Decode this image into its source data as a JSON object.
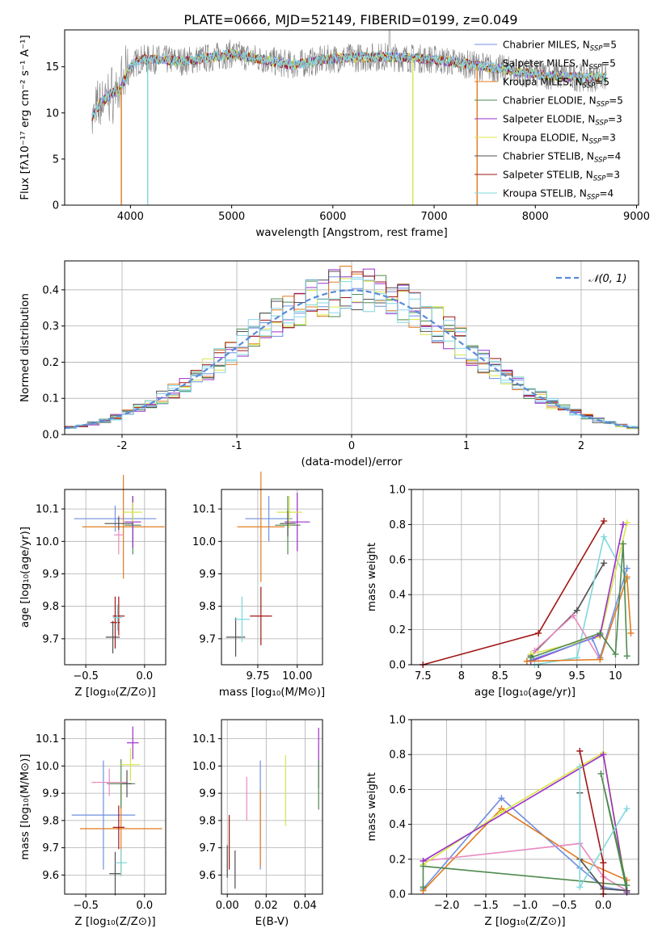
{
  "figure_title": "PLATE=0666, MJD=52149, FIBERID=0199, z=0.049",
  "colors": {
    "chabrier_miles": "#6f8fdf",
    "salpeter_miles": "#8fd3f0",
    "kroupa_miles": "#e07b1f",
    "chabrier_elodie": "#4f8a4f",
    "salpeter_elodie": "#9b30c8",
    "kroupa_elodie": "#d8e64a",
    "chabrier_stelib": "#505050",
    "salpeter_stelib": "#a01515",
    "kroupa_stelib": "#7fd8dc",
    "pink": "#e88ac0",
    "gray": "#7f7f7f",
    "normal_curve": "#5b8bd8",
    "grid": "#b0b0b0"
  },
  "chart_data": [
    {
      "id": "spectrum",
      "type": "line",
      "title": "PLATE=0666, MJD=52149, FIBERID=0199, z=0.049",
      "xlabel": "wavelength [Angstrom, rest frame]",
      "ylabel": "Flux [fλ10⁻¹⁷ erg cm⁻² s⁻¹ A⁻¹]",
      "xlim": [
        3350,
        9020
      ],
      "ylim": [
        0,
        19
      ],
      "xticks": [
        4000,
        5000,
        6000,
        7000,
        8000,
        9000
      ],
      "yticks": [
        0,
        5,
        10,
        15
      ],
      "grid": false,
      "legend_position": "right",
      "legend": [
        {
          "label": "Chabrier MILES, N",
          "sub": "SSP",
          "eq": "=5",
          "color": "#6f8fdf"
        },
        {
          "label": "Salpeter MILES, N",
          "sub": "SSP",
          "eq": "=5",
          "color": "#8fd3f0"
        },
        {
          "label": "Kroupa MILES, N",
          "sub": "SSP",
          "eq": "=5",
          "color": "#e07b1f"
        },
        {
          "label": "Chabrier ELODIE, N",
          "sub": "SSP",
          "eq": "=5",
          "color": "#4f8a4f"
        },
        {
          "label": "Salpeter ELODIE, N",
          "sub": "SSP",
          "eq": "=3",
          "color": "#9b30c8"
        },
        {
          "label": "Kroupa ELODIE, N",
          "sub": "SSP",
          "eq": "=3",
          "color": "#d8e64a"
        },
        {
          "label": "Chabrier STELIB, N",
          "sub": "SSP",
          "eq": "=4",
          "color": "#505050"
        },
        {
          "label": "Salpeter STELIB, N",
          "sub": "SSP",
          "eq": "=3",
          "color": "#a01515"
        },
        {
          "label": "Kroupa STELIB, N",
          "sub": "SSP",
          "eq": "=4",
          "color": "#7fd8dc"
        }
      ],
      "continuum": {
        "x": [
          3620,
          3700,
          3800,
          3900,
          4000,
          4100,
          4300,
          4500,
          4800,
          5000,
          5300,
          5600,
          6000,
          6500,
          7000,
          7500,
          8000,
          8500,
          8700
        ],
        "y": [
          9.5,
          11.0,
          12.0,
          12.5,
          15.0,
          15.8,
          15.8,
          15.6,
          16.0,
          16.4,
          15.8,
          15.2,
          15.9,
          16.1,
          15.8,
          15.0,
          14.2,
          13.8,
          13.9
        ]
      },
      "dips": [
        {
          "x": 3910,
          "y": 0
        },
        {
          "x": 4170,
          "y": 0
        },
        {
          "x": 6790,
          "y": 0
        },
        {
          "x": 7425,
          "y": 0
        }
      ]
    },
    {
      "id": "residual_hist",
      "type": "histogram",
      "xlabel": "(data-model)/error",
      "ylabel": "Normed distribution",
      "xlim": [
        -2.5,
        2.5
      ],
      "ylim": [
        0,
        0.48
      ],
      "xticks": [
        -2,
        -1,
        0,
        1,
        2
      ],
      "yticks": [
        0.0,
        0.1,
        0.2,
        0.3,
        0.4
      ],
      "grid": true,
      "legend_position": "top-right",
      "legend": [
        {
          "label": "𝒩(0, 1)",
          "color": "#5b8bd8"
        }
      ],
      "bin_width": 0.1
    },
    {
      "id": "age_vs_Z",
      "type": "errorbar",
      "xlabel": "Z [log₁₀(Z/Z⊙)]",
      "ylabel": "age  [log₁₀(age/yr)]",
      "xlim": [
        -0.68,
        0.18
      ],
      "ylim": [
        9.62,
        10.16
      ],
      "xticks": [
        -0.5,
        0.0
      ],
      "xticklabels": [
        "−0.5",
        "0.0"
      ],
      "yticks": [
        9.7,
        9.8,
        9.9,
        10.0,
        10.1
      ],
      "points": [
        {
          "x": -0.25,
          "xerr": 0.35,
          "y": 10.07,
          "yerr": 0.04,
          "color": "#6f8fdf"
        },
        {
          "x": -0.18,
          "xerr": 0.35,
          "y": 10.045,
          "yerr": 0.16,
          "color": "#e07b1f"
        },
        {
          "x": -0.1,
          "xerr": 0.07,
          "y": 10.05,
          "yerr": 0.09,
          "color": "#4f8a4f"
        },
        {
          "x": -0.1,
          "xerr": 0.07,
          "y": 10.06,
          "yerr": 0.08,
          "color": "#9b30c8"
        },
        {
          "x": -0.1,
          "xerr": 0.08,
          "y": 10.09,
          "yerr": 0.03,
          "color": "#d8e64a"
        },
        {
          "x": -0.22,
          "xerr": 0.04,
          "y": 10.02,
          "yerr": 0.06,
          "color": "#e88ac0"
        },
        {
          "x": -0.22,
          "xerr": 0.12,
          "y": 10.055,
          "yerr": 0.02,
          "color": "#505050"
        },
        {
          "x": -0.27,
          "xerr": 0.06,
          "y": 9.705,
          "yerr": 0.05,
          "color": "#505050"
        },
        {
          "x": -0.25,
          "xerr": 0.04,
          "y": 9.75,
          "yerr": 0.08,
          "color": "#a01515"
        },
        {
          "x": -0.22,
          "xerr": 0.05,
          "y": 9.77,
          "yerr": 0.06,
          "color": "#a01515"
        },
        {
          "x": -0.23,
          "xerr": 0.04,
          "y": 9.765,
          "yerr": 0.04,
          "color": "#7fd8dc"
        }
      ]
    },
    {
      "id": "age_vs_mass",
      "type": "errorbar",
      "xlabel": "mass [log₁₀(M/M⊙)]",
      "ylabel": "",
      "xlim": [
        9.52,
        10.16
      ],
      "ylim": [
        9.62,
        10.16
      ],
      "xticks": [
        9.75,
        10.0
      ],
      "xticklabels": [
        "9.75",
        "10.00"
      ],
      "yticks": [
        9.7,
        9.8,
        9.9,
        10.0,
        10.1
      ],
      "points": [
        {
          "x": 9.82,
          "xerr": 0.15,
          "y": 10.07,
          "yerr": 0.07,
          "color": "#6f8fdf"
        },
        {
          "x": 9.77,
          "xerr": 0.15,
          "y": 10.045,
          "yerr": 0.17,
          "color": "#e07b1f"
        },
        {
          "x": 9.94,
          "xerr": 0.08,
          "y": 10.05,
          "yerr": 0.09,
          "color": "#4f8a4f"
        },
        {
          "x": 10.0,
          "xerr": 0.08,
          "y": 10.06,
          "yerr": 0.09,
          "color": "#9b30c8"
        },
        {
          "x": 9.95,
          "xerr": 0.08,
          "y": 10.09,
          "yerr": 0.05,
          "color": "#d8e64a"
        },
        {
          "x": 9.94,
          "xerr": 0.05,
          "y": 10.055,
          "yerr": 0.04,
          "color": "#505050"
        },
        {
          "x": 9.61,
          "xerr": 0.06,
          "y": 9.705,
          "yerr": 0.06,
          "color": "#505050"
        },
        {
          "x": 9.77,
          "xerr": 0.07,
          "y": 9.77,
          "yerr": 0.09,
          "color": "#a01515"
        },
        {
          "x": 9.65,
          "xerr": 0.05,
          "y": 9.76,
          "yerr": 0.07,
          "color": "#7fd8dc"
        }
      ]
    },
    {
      "id": "weight_vs_age",
      "type": "line",
      "xlabel": "age  [log₁₀(age/yr)]",
      "ylabel": "mass weight",
      "xlim": [
        7.35,
        10.3
      ],
      "ylim": [
        0,
        1.0
      ],
      "xticks": [
        7.5,
        8.0,
        8.5,
        9.0,
        9.5,
        10.0
      ],
      "yticks": [
        0.0,
        0.2,
        0.4,
        0.6,
        0.8,
        1.0
      ],
      "grid": true,
      "series": [
        {
          "color": "#a01515",
          "x": [
            7.5,
            9.0,
            9.85
          ],
          "y": [
            0.0,
            0.18,
            0.82
          ]
        },
        {
          "color": "#505050",
          "x": [
            8.9,
            9.5,
            9.85
          ],
          "y": [
            0.05,
            0.31,
            0.58
          ]
        },
        {
          "color": "#7fd8dc",
          "x": [
            8.95,
            9.5,
            9.85,
            10.15
          ],
          "y": [
            0.0,
            0.04,
            0.73,
            0.49
          ]
        },
        {
          "color": "#d8e64a",
          "x": [
            8.9,
            9.8,
            10.15
          ],
          "y": [
            0.06,
            0.16,
            0.81
          ]
        },
        {
          "color": "#9b30c8",
          "x": [
            8.9,
            9.8,
            10.1
          ],
          "y": [
            0.02,
            0.17,
            0.8
          ]
        },
        {
          "color": "#e88ac0",
          "x": [
            8.95,
            9.45,
            9.8
          ],
          "y": [
            0.08,
            0.28,
            0.03
          ]
        },
        {
          "color": "#6f8fdf",
          "x": [
            8.85,
            9.7,
            9.8,
            10.15
          ],
          "y": [
            0.02,
            0.15,
            0.04,
            0.55
          ]
        },
        {
          "color": "#e07b1f",
          "x": [
            8.85,
            9.8,
            10.15,
            10.2
          ],
          "y": [
            0.02,
            0.03,
            0.5,
            0.18
          ]
        },
        {
          "color": "#4f8a4f",
          "x": [
            8.9,
            9.8,
            10.0,
            10.1,
            10.15
          ],
          "y": [
            0.04,
            0.18,
            0.06,
            0.69,
            0.05
          ]
        }
      ]
    },
    {
      "id": "mass_vs_Z",
      "type": "errorbar",
      "xlabel": "Z [log₁₀(Z/Z⊙)]",
      "ylabel": "mass [log₁₀(M/M⊙)]",
      "xlim": [
        -0.68,
        0.18
      ],
      "ylim": [
        9.53,
        10.17
      ],
      "xticks": [
        -0.5,
        0.0
      ],
      "xticklabels": [
        "−0.5",
        "0.0"
      ],
      "yticks": [
        9.6,
        9.7,
        9.8,
        9.9,
        10.0,
        10.1
      ],
      "points": [
        {
          "x": -0.35,
          "xerr": 0.27,
          "y": 9.82,
          "yerr": 0.2,
          "color": "#6f8fdf"
        },
        {
          "x": -0.2,
          "xerr": 0.35,
          "y": 9.77,
          "yerr": 0.17,
          "color": "#e07b1f"
        },
        {
          "x": -0.2,
          "xerr": 0.12,
          "y": 9.935,
          "yerr": 0.09,
          "color": "#4f8a4f"
        },
        {
          "x": -0.1,
          "xerr": 0.05,
          "y": 10.085,
          "yerr": 0.06,
          "color": "#9b30c8"
        },
        {
          "x": -0.12,
          "xerr": 0.08,
          "y": 10.005,
          "yerr": 0.06,
          "color": "#d8e64a"
        },
        {
          "x": -0.3,
          "xerr": 0.15,
          "y": 9.94,
          "yerr": 0.05,
          "color": "#e88ac0"
        },
        {
          "x": -0.15,
          "xerr": 0.04,
          "y": 9.935,
          "yerr": 0.05,
          "color": "#505050"
        },
        {
          "x": -0.25,
          "xerr": 0.05,
          "y": 9.605,
          "yerr": 0.08,
          "color": "#505050"
        },
        {
          "x": -0.22,
          "xerr": 0.05,
          "y": 9.775,
          "yerr": 0.08,
          "color": "#a01515"
        },
        {
          "x": -0.2,
          "xerr": 0.05,
          "y": 9.645,
          "yerr": 0.05,
          "color": "#7fd8dc"
        }
      ]
    },
    {
      "id": "mass_vs_ebv",
      "type": "errorbar",
      "xlabel": "E(B-V)",
      "ylabel": "",
      "xlim": [
        -0.003,
        0.049
      ],
      "ylim": [
        9.53,
        10.17
      ],
      "xticks": [
        0.0,
        0.02,
        0.04
      ],
      "xticklabels": [
        "0.00",
        "0.02",
        "0.04"
      ],
      "yticks": [
        9.6,
        9.7,
        9.8,
        9.9,
        10.0,
        10.1
      ],
      "points": [
        {
          "x": 0.0,
          "y": 9.65,
          "yerr": 0.06,
          "color": "#505050"
        },
        {
          "x": 0.001,
          "y": 9.72,
          "yerr": 0.1,
          "color": "#a01515"
        },
        {
          "x": 0.004,
          "y": 9.62,
          "yerr": 0.07,
          "color": "#505050"
        },
        {
          "x": 0.01,
          "y": 9.88,
          "yerr": 0.08,
          "color": "#e88ac0"
        },
        {
          "x": 0.017,
          "y": 9.82,
          "yerr": 0.2,
          "color": "#6f8fdf"
        },
        {
          "x": 0.017,
          "y": 9.77,
          "yerr": 0.14,
          "color": "#e07b1f"
        },
        {
          "x": 0.03,
          "y": 9.91,
          "yerr": 0.13,
          "color": "#d8e64a"
        },
        {
          "x": 0.047,
          "y": 10.03,
          "yerr": 0.11,
          "color": "#9b30c8"
        },
        {
          "x": 0.047,
          "y": 9.93,
          "yerr": 0.09,
          "color": "#4f8a4f"
        }
      ]
    },
    {
      "id": "weight_vs_Z",
      "type": "line",
      "xlabel": "Z [log₁₀(Z/Z⊙)]",
      "ylabel": "mass weight",
      "xlim": [
        -2.45,
        0.45
      ],
      "ylim": [
        0,
        1.0
      ],
      "xticks": [
        -2.0,
        -1.5,
        -1.0,
        -0.5,
        0.0
      ],
      "xticklabels": [
        "−2.0",
        "−1.5",
        "−1.0",
        "−0.5",
        "0.0"
      ],
      "yticks": [
        0.0,
        0.2,
        0.4,
        0.6,
        0.8,
        1.0
      ],
      "grid": true,
      "series": [
        {
          "color": "#6f8fdf",
          "x": [
            -2.3,
            -1.3,
            -0.3,
            0.0,
            0.3
          ],
          "y": [
            0.03,
            0.55,
            0.15,
            0.04,
            0.02
          ]
        },
        {
          "color": "#e07b1f",
          "x": [
            -2.3,
            -1.3,
            -0.3,
            0.3
          ],
          "y": [
            0.02,
            0.49,
            0.2,
            0.08
          ]
        },
        {
          "color": "#e88ac0",
          "x": [
            -2.3,
            -0.3,
            0.0,
            0.3
          ],
          "y": [
            0.19,
            0.29,
            0.1,
            0.02
          ]
        },
        {
          "color": "#d8e64a",
          "x": [
            -2.3,
            -1.3,
            0.0,
            0.3
          ],
          "y": [
            0.17,
            0.47,
            0.81,
            0.02
          ]
        },
        {
          "color": "#9b30c8",
          "x": [
            -2.3,
            0.0,
            0.3
          ],
          "y": [
            0.19,
            0.8,
            0.01
          ]
        },
        {
          "color": "#4f8a4f",
          "x": [
            -2.3,
            -2.3,
            0.3,
            -0.03,
            0.3
          ],
          "y": [
            0.04,
            0.16,
            0.05,
            0.69,
            0.02
          ]
        },
        {
          "color": "#505050",
          "x": [
            -0.3,
            -0.3,
            0.0,
            0.3
          ],
          "y": [
            0.58,
            0.2,
            0.03,
            0.02
          ]
        },
        {
          "color": "#a01515",
          "x": [
            -0.3,
            0.0,
            0.0
          ],
          "y": [
            0.82,
            0.18,
            0.0
          ]
        },
        {
          "color": "#7fd8dc",
          "x": [
            -0.3,
            -0.3,
            0.3
          ],
          "y": [
            0.73,
            0.04,
            0.49
          ]
        }
      ]
    }
  ]
}
